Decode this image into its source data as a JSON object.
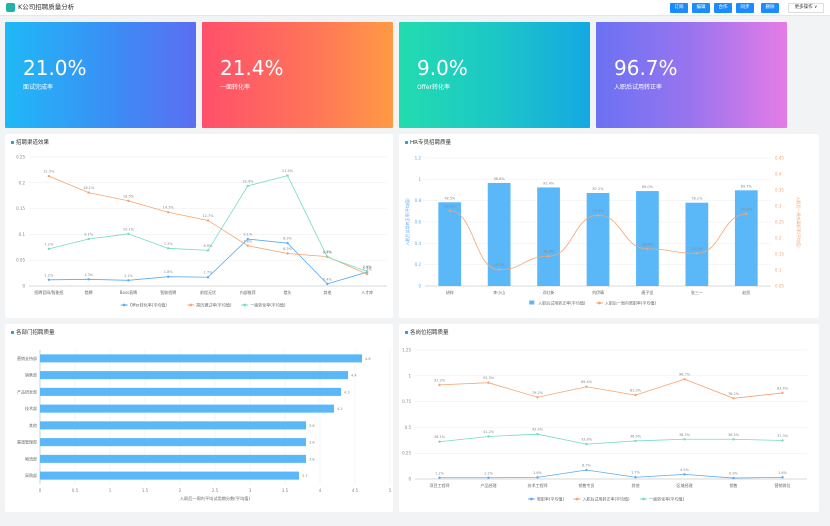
{
  "header": {
    "title": "K公司招聘质量分析",
    "buttons": [
      "订阅",
      "编辑",
      "合作",
      "同步",
      "删除"
    ],
    "more": "更多操作 ∨"
  },
  "kpis": [
    {
      "value": "21.0%",
      "label": "面试完成率"
    },
    {
      "value": "21.4%",
      "label": "一面转化率"
    },
    {
      "value": "9.0%",
      "label": "Offer转化率"
    },
    {
      "value": "96.7%",
      "label": "入职后试用转正率"
    }
  ],
  "panels": {
    "channel": "招聘渠道效果",
    "hr": "HR专员招聘质量",
    "dept": "各部门招聘质量",
    "position": "各岗位招聘质量"
  },
  "colors": {
    "blue": "#5aabf2",
    "orange": "#f4a572",
    "green": "#73dcc4",
    "bar": "#5ab7f8"
  },
  "chart_data": [
    {
      "type": "line",
      "title": "招聘渠道效果",
      "categories": [
        "招聘官网/智能招",
        "猎聘",
        "Boss直聘",
        "智联招聘",
        "前程无忧",
        "内部推荐",
        "猎头",
        "其他",
        "人才库"
      ],
      "ylim": [
        0,
        0.25
      ],
      "yticks": [
        "0",
        "0.05",
        "0.1",
        "0.15",
        "0.2",
        "0.25"
      ],
      "series": [
        {
          "name": "Offer转化率(平均值)",
          "values": [
            0.012,
            0.013,
            0.011,
            0.018,
            0.017,
            0.091,
            0.083,
            0.004,
            0.027
          ],
          "labels": [
            "1.2%",
            "1.3%",
            "1.1%",
            "1.8%",
            "1.7%",
            "9.1%",
            "8.3%",
            "0.4%",
            "2.7%"
          ]
        },
        {
          "name": "简历通过率(平均值)",
          "values": [
            0.213,
            0.181,
            0.165,
            0.143,
            0.127,
            0.078,
            0.063,
            0.057,
            0.023
          ],
          "labels": [
            "21.3%",
            "18.1%",
            "16.5%",
            "14.3%",
            "12.7%",
            "7.8%",
            "6.3%",
            "5.7%",
            "2.3%"
          ]
        },
        {
          "name": "一面转化率(平均值)",
          "values": [
            0.072,
            0.091,
            0.101,
            0.073,
            0.069,
            0.194,
            0.214,
            0.056,
            0.028
          ],
          "labels": [
            "7.2%",
            "9.1%",
            "10.1%",
            "7.3%",
            "6.9%",
            "19.4%",
            "21.4%",
            "5.6%",
            "2.8%"
          ]
        }
      ]
    },
    {
      "type": "bar",
      "title": "HR专员招聘质量",
      "categories": [
        "胡祥",
        "李小山",
        "邓红新",
        "刘伊晴",
        "唐子坚",
        "张三一",
        "赵凯"
      ],
      "ylim": [
        0,
        1.2
      ],
      "yticks": [
        "0",
        "0.2",
        "0.4",
        "0.6",
        "0.8",
        "1",
        "1.2"
      ],
      "y2lim": [
        0.05,
        0.45
      ],
      "y2ticks": [
        "0.05",
        "0.1",
        "0.15",
        "0.2",
        "0.25",
        "0.3",
        "0.35",
        "0.4",
        "0.45"
      ],
      "ylabel": "入职后试用转正率(平均值)",
      "y2label": "入职后一周内离职率(平均值)",
      "series": [
        {
          "name": "入职后试用转正率(平均值)",
          "values": [
            0.785,
            0.966,
            0.924,
            0.872,
            0.89,
            0.781,
            0.897
          ],
          "labels": [
            "78.5%",
            "96.6%",
            "92.4%",
            "87.2%",
            "89.0%",
            "78.1%",
            "89.7%"
          ]
        },
        {
          "name": "入职后一周内离职率(平均值)",
          "values": [
            0.285,
            0.101,
            0.143,
            0.271,
            0.166,
            0.152,
            0.275
          ],
          "labels": [
            "28.5%",
            "10.1%",
            "14.3%",
            "27.1%",
            "16.6%",
            "15.2%",
            "27.5%"
          ]
        }
      ]
    },
    {
      "type": "bar",
      "orientation": "horizontal",
      "title": "各部门招聘质量",
      "categories": [
        "营销支持部",
        "销售部",
        "产品研发部",
        "技术部",
        "其他",
        "渠道管理部",
        "物流部",
        "采购部"
      ],
      "values": [
        4.6,
        4.4,
        4.3,
        4.2,
        3.8,
        3.8,
        3.8,
        3.7
      ],
      "labels": [
        "4.6",
        "4.4",
        "4.3",
        "4.2",
        "3.8",
        "3.8",
        "3.8",
        "3.7"
      ],
      "xlim": [
        0,
        5
      ],
      "xticks": [
        "0",
        "0.5",
        "1",
        "1.5",
        "2",
        "2.5",
        "3",
        "3.5",
        "4",
        "4.5",
        "5"
      ],
      "xlabel": "入职后一周内平均试用期分数(平均值)"
    },
    {
      "type": "line",
      "title": "各岗位招聘质量",
      "categories": [
        "项目工程师",
        "产品经理",
        "技术工程师",
        "销售专员",
        "其他",
        "区域经理",
        "销售",
        "营销岗位"
      ],
      "ylim": [
        0,
        1.25
      ],
      "yticks": [
        "0",
        "0.25",
        "0.5",
        "0.75",
        "1",
        "1.25"
      ],
      "series": [
        {
          "name": "离职率(平均值)",
          "values": [
            0.012,
            0.012,
            0.016,
            0.087,
            0.017,
            0.045,
            0.009,
            0.016
          ],
          "labels": [
            "1.2%",
            "1.2%",
            "1.6%",
            "8.7%",
            "1.7%",
            "4.5%",
            "0.9%",
            "1.6%"
          ]
        },
        {
          "name": "入职后试用转正率(平均值)",
          "values": [
            0.912,
            0.933,
            0.792,
            0.894,
            0.813,
            0.967,
            0.782,
            0.834
          ],
          "labels": [
            "91.2%",
            "93.3%",
            "79.2%",
            "89.4%",
            "81.3%",
            "96.7%",
            "78.2%",
            "83.4%"
          ]
        },
        {
          "name": "一面转化率(平均值)",
          "values": [
            0.361,
            0.412,
            0.434,
            0.338,
            0.369,
            0.385,
            0.385,
            0.373
          ],
          "labels": [
            "36.1%",
            "41.2%",
            "43.4%",
            "33.8%",
            "36.9%",
            "38.5%",
            "38.5%",
            "37.3%"
          ]
        }
      ]
    }
  ]
}
